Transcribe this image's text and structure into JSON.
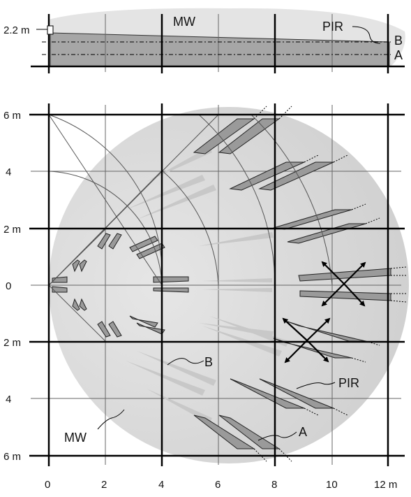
{
  "side_view": {
    "height_label": "2.2 m",
    "mw_label": "MW",
    "pir_label": "PIR",
    "line_b_label": "B",
    "line_a_label": "A"
  },
  "top_view": {
    "y_tick_labels": [
      "6 m",
      "4",
      "2 m",
      "0",
      "2 m",
      "4",
      "6 m"
    ],
    "x_tick_labels": [
      "0",
      "2",
      "4",
      "6",
      "8",
      "10",
      "12 m"
    ],
    "callout_b": "B",
    "callout_pir": "PIR",
    "callout_a": "A",
    "callout_mw": "MW"
  },
  "colors": {
    "mw_zone": "#d9d9d9",
    "pir_light": "#c8c8c8",
    "pir_dark": "#9a9a9a",
    "grid_major": "#000000",
    "grid_minor": "#666666"
  }
}
